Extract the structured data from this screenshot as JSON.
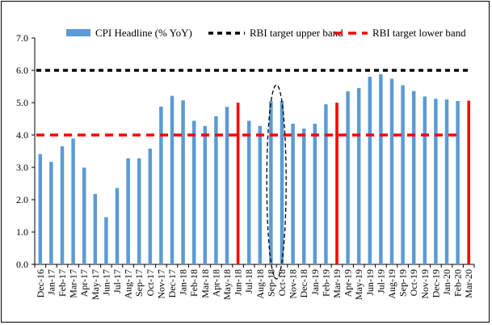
{
  "chart_data": {
    "type": "bar",
    "title": "",
    "xlabel": "",
    "ylabel": "",
    "ylim": [
      0,
      7
    ],
    "yticks": [
      "0.0",
      "1.0",
      "2.0",
      "3.0",
      "4.0",
      "5.0",
      "6.0",
      "7.0"
    ],
    "grid": false,
    "legend_position": "top",
    "categories": [
      "Dec-16",
      "Jan-17",
      "Feb-17",
      "Mar-17",
      "Apr-17",
      "May-17",
      "Jun-17",
      "Jul-17",
      "Aug-17",
      "Sep-17",
      "Oct-17",
      "Nov-17",
      "Dec-17",
      "Jan-18",
      "Feb-18",
      "Mar-18",
      "Apr-18",
      "May-18",
      "Jun-18",
      "Jul-18",
      "Aug-18",
      "Sep-18",
      "Oct-18",
      "Nov-18",
      "Dec-18",
      "Jan-19",
      "Feb-19",
      "Mar-19",
      "Apr-19",
      "May-19",
      "Jun-19",
      "Jul-19",
      "Aug-19",
      "Sep-19",
      "Oct-19",
      "Nov-19",
      "Dec-19",
      "Jan-20",
      "Feb-20",
      "Mar-20"
    ],
    "series": [
      {
        "name": "CPI Headline (% YoY)",
        "color": "#5b9bd5",
        "values": [
          3.41,
          3.17,
          3.65,
          3.89,
          2.99,
          2.18,
          1.46,
          2.36,
          3.28,
          3.28,
          3.58,
          4.88,
          5.21,
          5.07,
          4.44,
          4.28,
          4.58,
          4.87,
          5.0,
          4.44,
          4.28,
          5.05,
          5.05,
          4.35,
          4.2,
          4.35,
          4.95,
          5.0,
          5.35,
          5.45,
          5.8,
          5.88,
          5.74,
          5.54,
          5.36,
          5.19,
          5.12,
          5.1,
          5.05,
          5.06
        ]
      },
      {
        "name": "RBI target upper band",
        "color": "#000000",
        "style": "dashed",
        "values": [
          6,
          6,
          6,
          6,
          6,
          6,
          6,
          6,
          6,
          6,
          6,
          6,
          6,
          6,
          6,
          6,
          6,
          6,
          6,
          6,
          6,
          6,
          6,
          6,
          6,
          6,
          6,
          6,
          6,
          6,
          6,
          6,
          6,
          6,
          6,
          6,
          6,
          6,
          6,
          6
        ]
      },
      {
        "name": "RBI target lower band",
        "color": "#ff0000",
        "style": "dashed",
        "values": [
          4,
          4,
          4,
          4,
          4,
          4,
          4,
          4,
          4,
          4,
          4,
          4,
          4,
          4,
          4,
          4,
          4,
          4,
          4,
          4,
          4,
          4,
          4,
          4,
          4,
          4,
          4,
          4,
          4,
          4,
          4,
          4,
          4,
          4,
          4,
          4,
          4,
          4,
          4,
          4
        ]
      }
    ],
    "highlighted_categories": [
      "Jun-18",
      "Mar-19",
      "Mar-20"
    ],
    "highlight_color": "#ff0000",
    "annotation": {
      "type": "dashed-ellipse",
      "around": [
        "Sep-18",
        "Oct-18"
      ],
      "color": "#000000"
    }
  }
}
